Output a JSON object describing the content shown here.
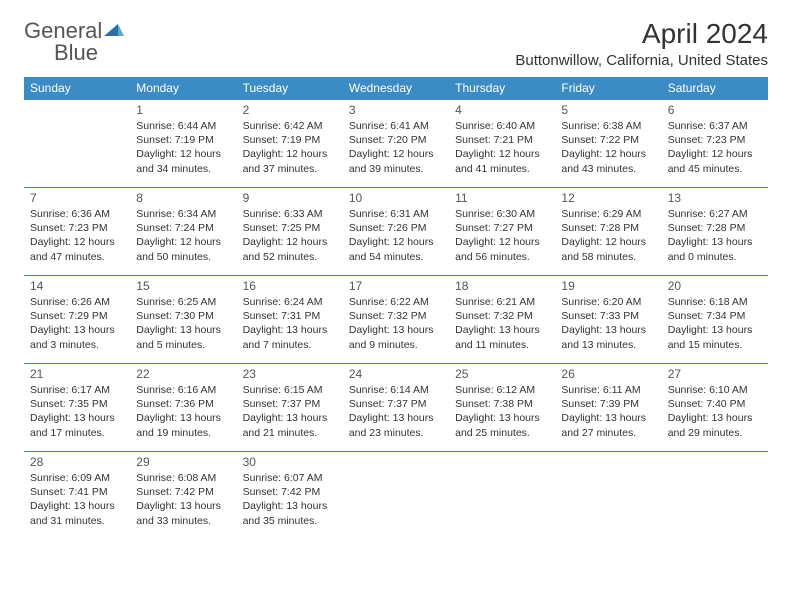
{
  "brand": {
    "part1": "General",
    "part2": "Blue"
  },
  "title": "April 2024",
  "location": "Buttonwillow, California, United States",
  "colors": {
    "accent": "#3b8bc4",
    "text": "#333333",
    "bg": "#ffffff"
  },
  "day_labels": [
    "Sunday",
    "Monday",
    "Tuesday",
    "Wednesday",
    "Thursday",
    "Friday",
    "Saturday"
  ],
  "weeks": [
    [
      null,
      {
        "n": "1",
        "sr": "Sunrise: 6:44 AM",
        "ss": "Sunset: 7:19 PM",
        "dl1": "Daylight: 12 hours",
        "dl2": "and 34 minutes."
      },
      {
        "n": "2",
        "sr": "Sunrise: 6:42 AM",
        "ss": "Sunset: 7:19 PM",
        "dl1": "Daylight: 12 hours",
        "dl2": "and 37 minutes."
      },
      {
        "n": "3",
        "sr": "Sunrise: 6:41 AM",
        "ss": "Sunset: 7:20 PM",
        "dl1": "Daylight: 12 hours",
        "dl2": "and 39 minutes."
      },
      {
        "n": "4",
        "sr": "Sunrise: 6:40 AM",
        "ss": "Sunset: 7:21 PM",
        "dl1": "Daylight: 12 hours",
        "dl2": "and 41 minutes."
      },
      {
        "n": "5",
        "sr": "Sunrise: 6:38 AM",
        "ss": "Sunset: 7:22 PM",
        "dl1": "Daylight: 12 hours",
        "dl2": "and 43 minutes."
      },
      {
        "n": "6",
        "sr": "Sunrise: 6:37 AM",
        "ss": "Sunset: 7:23 PM",
        "dl1": "Daylight: 12 hours",
        "dl2": "and 45 minutes."
      }
    ],
    [
      {
        "n": "7",
        "sr": "Sunrise: 6:36 AM",
        "ss": "Sunset: 7:23 PM",
        "dl1": "Daylight: 12 hours",
        "dl2": "and 47 minutes."
      },
      {
        "n": "8",
        "sr": "Sunrise: 6:34 AM",
        "ss": "Sunset: 7:24 PM",
        "dl1": "Daylight: 12 hours",
        "dl2": "and 50 minutes."
      },
      {
        "n": "9",
        "sr": "Sunrise: 6:33 AM",
        "ss": "Sunset: 7:25 PM",
        "dl1": "Daylight: 12 hours",
        "dl2": "and 52 minutes."
      },
      {
        "n": "10",
        "sr": "Sunrise: 6:31 AM",
        "ss": "Sunset: 7:26 PM",
        "dl1": "Daylight: 12 hours",
        "dl2": "and 54 minutes."
      },
      {
        "n": "11",
        "sr": "Sunrise: 6:30 AM",
        "ss": "Sunset: 7:27 PM",
        "dl1": "Daylight: 12 hours",
        "dl2": "and 56 minutes."
      },
      {
        "n": "12",
        "sr": "Sunrise: 6:29 AM",
        "ss": "Sunset: 7:28 PM",
        "dl1": "Daylight: 12 hours",
        "dl2": "and 58 minutes."
      },
      {
        "n": "13",
        "sr": "Sunrise: 6:27 AM",
        "ss": "Sunset: 7:28 PM",
        "dl1": "Daylight: 13 hours",
        "dl2": "and 0 minutes."
      }
    ],
    [
      {
        "n": "14",
        "sr": "Sunrise: 6:26 AM",
        "ss": "Sunset: 7:29 PM",
        "dl1": "Daylight: 13 hours",
        "dl2": "and 3 minutes."
      },
      {
        "n": "15",
        "sr": "Sunrise: 6:25 AM",
        "ss": "Sunset: 7:30 PM",
        "dl1": "Daylight: 13 hours",
        "dl2": "and 5 minutes."
      },
      {
        "n": "16",
        "sr": "Sunrise: 6:24 AM",
        "ss": "Sunset: 7:31 PM",
        "dl1": "Daylight: 13 hours",
        "dl2": "and 7 minutes."
      },
      {
        "n": "17",
        "sr": "Sunrise: 6:22 AM",
        "ss": "Sunset: 7:32 PM",
        "dl1": "Daylight: 13 hours",
        "dl2": "and 9 minutes."
      },
      {
        "n": "18",
        "sr": "Sunrise: 6:21 AM",
        "ss": "Sunset: 7:32 PM",
        "dl1": "Daylight: 13 hours",
        "dl2": "and 11 minutes."
      },
      {
        "n": "19",
        "sr": "Sunrise: 6:20 AM",
        "ss": "Sunset: 7:33 PM",
        "dl1": "Daylight: 13 hours",
        "dl2": "and 13 minutes."
      },
      {
        "n": "20",
        "sr": "Sunrise: 6:18 AM",
        "ss": "Sunset: 7:34 PM",
        "dl1": "Daylight: 13 hours",
        "dl2": "and 15 minutes."
      }
    ],
    [
      {
        "n": "21",
        "sr": "Sunrise: 6:17 AM",
        "ss": "Sunset: 7:35 PM",
        "dl1": "Daylight: 13 hours",
        "dl2": "and 17 minutes."
      },
      {
        "n": "22",
        "sr": "Sunrise: 6:16 AM",
        "ss": "Sunset: 7:36 PM",
        "dl1": "Daylight: 13 hours",
        "dl2": "and 19 minutes."
      },
      {
        "n": "23",
        "sr": "Sunrise: 6:15 AM",
        "ss": "Sunset: 7:37 PM",
        "dl1": "Daylight: 13 hours",
        "dl2": "and 21 minutes."
      },
      {
        "n": "24",
        "sr": "Sunrise: 6:14 AM",
        "ss": "Sunset: 7:37 PM",
        "dl1": "Daylight: 13 hours",
        "dl2": "and 23 minutes."
      },
      {
        "n": "25",
        "sr": "Sunrise: 6:12 AM",
        "ss": "Sunset: 7:38 PM",
        "dl1": "Daylight: 13 hours",
        "dl2": "and 25 minutes."
      },
      {
        "n": "26",
        "sr": "Sunrise: 6:11 AM",
        "ss": "Sunset: 7:39 PM",
        "dl1": "Daylight: 13 hours",
        "dl2": "and 27 minutes."
      },
      {
        "n": "27",
        "sr": "Sunrise: 6:10 AM",
        "ss": "Sunset: 7:40 PM",
        "dl1": "Daylight: 13 hours",
        "dl2": "and 29 minutes."
      }
    ],
    [
      {
        "n": "28",
        "sr": "Sunrise: 6:09 AM",
        "ss": "Sunset: 7:41 PM",
        "dl1": "Daylight: 13 hours",
        "dl2": "and 31 minutes."
      },
      {
        "n": "29",
        "sr": "Sunrise: 6:08 AM",
        "ss": "Sunset: 7:42 PM",
        "dl1": "Daylight: 13 hours",
        "dl2": "and 33 minutes."
      },
      {
        "n": "30",
        "sr": "Sunrise: 6:07 AM",
        "ss": "Sunset: 7:42 PM",
        "dl1": "Daylight: 13 hours",
        "dl2": "and 35 minutes."
      },
      null,
      null,
      null,
      null
    ]
  ]
}
